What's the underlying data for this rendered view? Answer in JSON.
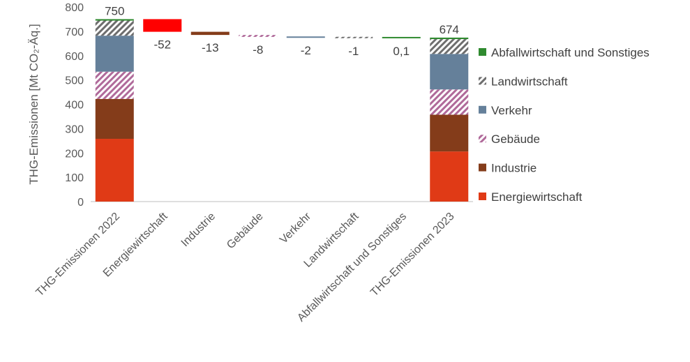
{
  "chart_data": {
    "type": "bar",
    "subtype": "waterfall-stacked",
    "ylabel": "THG-Emissionen [Mt CO₂-Äq.]",
    "ylim": [
      0,
      800
    ],
    "yticks": [
      0,
      100,
      200,
      300,
      400,
      500,
      600,
      700,
      800
    ],
    "grid": false,
    "legend_position": "right",
    "categories": [
      "THG-Emissionen 2022",
      "Energiewirtschaft",
      "Industrie",
      "Gebäude",
      "Verkehr",
      "Landwirtschaft",
      "Abfallwirtschaft und Sonstiges",
      "THG-Emissionen 2023"
    ],
    "series": [
      {
        "name": "Energiewirtschaft",
        "color": "#e03a16",
        "pattern": "solid",
        "start": 258,
        "end": 206
      },
      {
        "name": "Industrie",
        "color": "#843c1a",
        "pattern": "solid",
        "start": 164,
        "end": 151
      },
      {
        "name": "Gebäude",
        "color": "#b06a9a",
        "pattern": "hatch",
        "start": 112,
        "end": 104
      },
      {
        "name": "Verkehr",
        "color": "#65809a",
        "pattern": "solid",
        "start": 148,
        "end": 146
      },
      {
        "name": "Landwirtschaft",
        "color": "#6e6e6e",
        "pattern": "hatch",
        "start": 62,
        "end": 61
      },
      {
        "name": "Abfallwirtschaft und Sonstiges",
        "color": "#2f8a2f",
        "pattern": "solid",
        "start": 6,
        "end": 6.1
      }
    ],
    "changes": [
      {
        "category": "Energiewirtschaft",
        "value": -52,
        "label": "-52",
        "color": "#ff0000",
        "pattern": "solid"
      },
      {
        "category": "Industrie",
        "value": -13,
        "label": "-13",
        "color": "#843c1a",
        "pattern": "solid"
      },
      {
        "category": "Gebäude",
        "value": -8,
        "label": "-8",
        "color": "#b06a9a",
        "pattern": "hatch"
      },
      {
        "category": "Verkehr",
        "value": -2,
        "label": "-2",
        "color": "#65809a",
        "pattern": "solid"
      },
      {
        "category": "Landwirtschaft",
        "value": -1,
        "label": "-1",
        "color": "#6e6e6e",
        "pattern": "hatch"
      },
      {
        "category": "Abfallwirtschaft und Sonstiges",
        "value": 0.1,
        "label": "0,1",
        "color": "#2f8a2f",
        "pattern": "solid"
      }
    ],
    "totals": [
      {
        "category": "THG-Emissionen 2022",
        "value": 750,
        "label": "750"
      },
      {
        "category": "THG-Emissionen 2023",
        "value": 674,
        "label": "674"
      }
    ],
    "legend_order": [
      "Abfallwirtschaft und Sonstiges",
      "Landwirtschaft",
      "Verkehr",
      "Gebäude",
      "Industrie",
      "Energiewirtschaft"
    ]
  }
}
